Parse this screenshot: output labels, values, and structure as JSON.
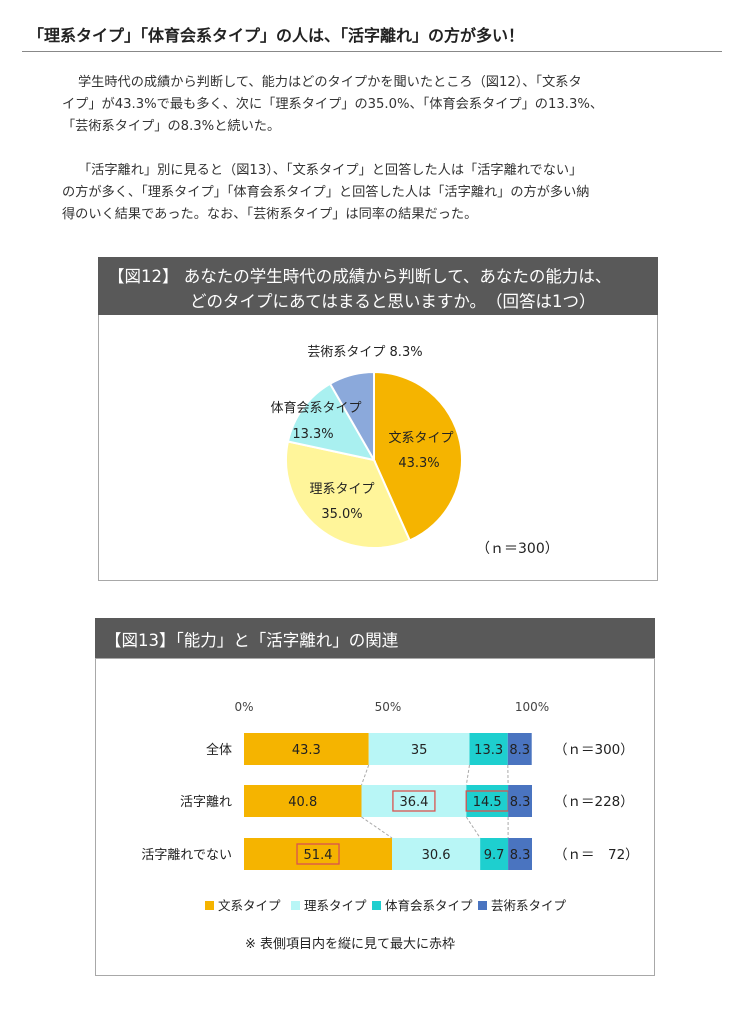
{
  "heading": "「理系タイプ」「体育会系タイプ」の人は、「活字離れ」の方が多い！",
  "paragraphs": [
    [
      "学生時代の成績から判断して、能力はどのタイプかを聞いたところ（図12）、「文系タ",
      "イプ」が43.3%で最も多く、次に「理系タイプ」の35.0%、「体育会系タイプ」の13.3%、",
      "「芸術系タイプ」の8.3%と続いた。"
    ],
    [
      "「活字離れ」別に見ると（図13）、「文系タイプ」と回答した人は「活字離れでない」",
      "の方が多く、「理系タイプ」「体育会系タイプ」と回答した人は「活字離れ」の方が多い納",
      "得のいく結果であった。なお、「芸術系タイプ」は同率の結果だった。"
    ]
  ],
  "fig12": {
    "header_line1": "【図12】 あなたの学生時代の成績から判断して、あなたの能力は、",
    "header_line2": "どのタイプにあてはまると思いますか。　（回答は1つ）",
    "n_label": "（ｎ＝300）"
  },
  "fig13": {
    "header": "【図13】「能力」と「活字離れ」の関連",
    "footnote": "※  表側項目内を縦に見て最大に赤枠"
  },
  "chart_data": [
    {
      "type": "pie",
      "slices": [
        {
          "label": "文系タイプ",
          "value": 43.3,
          "value_label": "43.3%",
          "color": "#f5b400"
        },
        {
          "label": "理系タイプ",
          "value": 35.0,
          "value_label": "35.0%",
          "color": "#fff59a"
        },
        {
          "label": "体育会系タイプ",
          "value": 13.3,
          "value_label": "13.3%",
          "color": "#a9f0f0"
        },
        {
          "label": "芸術系タイプ",
          "value": 8.3,
          "value_label": "8.3%",
          "color": "#8ba9db"
        }
      ]
    },
    {
      "type": "bar",
      "orientation": "horizontal-stacked-100",
      "axis_ticks": [
        "0%",
        "50%",
        "100%"
      ],
      "categories": [
        "全体",
        "活字離れ",
        "活字離れでない"
      ],
      "n_labels": [
        "（ｎ＝300）",
        "（ｎ＝228）",
        "（ｎ＝　72）"
      ],
      "series": [
        {
          "name": "文系タイプ",
          "color": "#f5b400",
          "values": [
            43.3,
            40.8,
            51.4
          ],
          "labels": [
            "43.3",
            "40.8",
            "51.4"
          ],
          "highlight": [
            false,
            false,
            true
          ]
        },
        {
          "name": "理系タイプ",
          "color": "#b8f6f6",
          "values": [
            35,
            36.4,
            30.6
          ],
          "labels": [
            "35",
            "36.4",
            "30.6"
          ],
          "highlight": [
            false,
            true,
            false
          ]
        },
        {
          "name": "体育会系タイプ",
          "color": "#1ecfcf",
          "values": [
            13.3,
            14.5,
            9.7
          ],
          "labels": [
            "13.3",
            "14.5",
            "9.7"
          ],
          "highlight": [
            false,
            true,
            false
          ]
        },
        {
          "name": "芸術系タイプ",
          "color": "#4a74c0",
          "values": [
            8.3,
            8.3,
            8.3
          ],
          "labels": [
            "8.3",
            "8.3",
            "8.3"
          ],
          "highlight": [
            false,
            false,
            false
          ]
        }
      ],
      "highlight_color": "#d9534f"
    }
  ]
}
